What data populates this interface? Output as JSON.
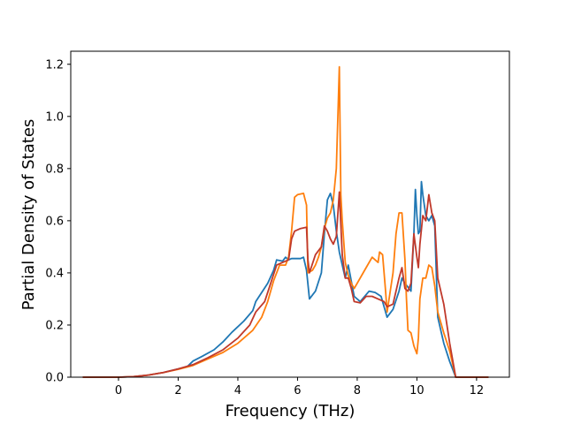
{
  "chart_data": {
    "type": "line",
    "title": "",
    "xlabel": "Frequency (THz)",
    "ylabel": "Partial Density of States",
    "xlim": [
      -1.6,
      13.1
    ],
    "ylim": [
      0.0,
      1.25
    ],
    "xticks": [
      0,
      2,
      4,
      6,
      8,
      10,
      12
    ],
    "yticks": [
      0.0,
      0.2,
      0.4,
      0.6,
      0.8,
      1.0,
      1.2
    ],
    "xtick_labels": [
      "0",
      "2",
      "4",
      "6",
      "8",
      "10",
      "12"
    ],
    "ytick_labels": [
      "0.0",
      "0.2",
      "0.4",
      "0.6",
      "0.8",
      "1.0",
      "1.2"
    ],
    "grid": false,
    "legend": "none",
    "series": [
      {
        "color": "#1f77b4",
        "points": [
          [
            -1.2,
            0.0
          ],
          [
            0.0,
            0.0
          ],
          [
            0.5,
            0.002
          ],
          [
            1.0,
            0.008
          ],
          [
            1.5,
            0.018
          ],
          [
            2.0,
            0.032
          ],
          [
            2.3,
            0.04
          ],
          [
            2.5,
            0.062
          ],
          [
            2.8,
            0.08
          ],
          [
            3.2,
            0.105
          ],
          [
            3.5,
            0.135
          ],
          [
            3.8,
            0.172
          ],
          [
            4.2,
            0.215
          ],
          [
            4.5,
            0.255
          ],
          [
            4.6,
            0.29
          ],
          [
            5.0,
            0.36
          ],
          [
            5.2,
            0.41
          ],
          [
            5.3,
            0.45
          ],
          [
            5.5,
            0.445
          ],
          [
            5.6,
            0.46
          ],
          [
            5.7,
            0.45
          ],
          [
            5.8,
            0.455
          ],
          [
            6.1,
            0.455
          ],
          [
            6.2,
            0.46
          ],
          [
            6.3,
            0.41
          ],
          [
            6.4,
            0.3
          ],
          [
            6.6,
            0.33
          ],
          [
            6.8,
            0.4
          ],
          [
            6.9,
            0.55
          ],
          [
            7.0,
            0.68
          ],
          [
            7.1,
            0.705
          ],
          [
            7.2,
            0.66
          ],
          [
            7.3,
            0.56
          ],
          [
            7.4,
            0.48
          ],
          [
            7.5,
            0.43
          ],
          [
            7.6,
            0.38
          ],
          [
            7.7,
            0.43
          ],
          [
            7.9,
            0.31
          ],
          [
            8.1,
            0.29
          ],
          [
            8.4,
            0.33
          ],
          [
            8.6,
            0.325
          ],
          [
            8.8,
            0.31
          ],
          [
            9.0,
            0.23
          ],
          [
            9.2,
            0.26
          ],
          [
            9.4,
            0.33
          ],
          [
            9.5,
            0.38
          ],
          [
            9.6,
            0.36
          ],
          [
            9.8,
            0.33
          ],
          [
            9.9,
            0.55
          ],
          [
            9.95,
            0.72
          ],
          [
            10.0,
            0.62
          ],
          [
            10.05,
            0.55
          ],
          [
            10.1,
            0.56
          ],
          [
            10.15,
            0.75
          ],
          [
            10.2,
            0.7
          ],
          [
            10.3,
            0.62
          ],
          [
            10.4,
            0.6
          ],
          [
            10.5,
            0.62
          ],
          [
            10.6,
            0.58
          ],
          [
            10.7,
            0.23
          ],
          [
            10.9,
            0.13
          ],
          [
            11.1,
            0.06
          ],
          [
            11.2,
            0.03
          ],
          [
            11.3,
            0.0
          ],
          [
            12.4,
            0.0
          ]
        ]
      },
      {
        "color": "#ff7f0e",
        "points": [
          [
            -1.2,
            0.0
          ],
          [
            0.0,
            0.0
          ],
          [
            0.5,
            0.002
          ],
          [
            1.0,
            0.008
          ],
          [
            1.5,
            0.018
          ],
          [
            2.0,
            0.03
          ],
          [
            2.5,
            0.045
          ],
          [
            3.0,
            0.07
          ],
          [
            3.5,
            0.095
          ],
          [
            4.0,
            0.13
          ],
          [
            4.5,
            0.18
          ],
          [
            4.8,
            0.23
          ],
          [
            5.0,
            0.29
          ],
          [
            5.2,
            0.37
          ],
          [
            5.4,
            0.43
          ],
          [
            5.6,
            0.43
          ],
          [
            5.7,
            0.46
          ],
          [
            5.8,
            0.56
          ],
          [
            5.9,
            0.69
          ],
          [
            6.0,
            0.7
          ],
          [
            6.2,
            0.705
          ],
          [
            6.3,
            0.66
          ],
          [
            6.35,
            0.4
          ],
          [
            6.5,
            0.41
          ],
          [
            6.6,
            0.43
          ],
          [
            6.7,
            0.46
          ],
          [
            6.8,
            0.5
          ],
          [
            6.9,
            0.57
          ],
          [
            7.0,
            0.61
          ],
          [
            7.1,
            0.63
          ],
          [
            7.2,
            0.68
          ],
          [
            7.3,
            0.8
          ],
          [
            7.4,
            1.19
          ],
          [
            7.45,
            0.7
          ],
          [
            7.5,
            0.6
          ],
          [
            7.6,
            0.44
          ],
          [
            7.7,
            0.39
          ],
          [
            7.8,
            0.36
          ],
          [
            7.9,
            0.34
          ],
          [
            8.0,
            0.36
          ],
          [
            8.3,
            0.42
          ],
          [
            8.5,
            0.46
          ],
          [
            8.7,
            0.44
          ],
          [
            8.75,
            0.48
          ],
          [
            8.85,
            0.47
          ],
          [
            8.95,
            0.33
          ],
          [
            9.0,
            0.25
          ],
          [
            9.2,
            0.4
          ],
          [
            9.3,
            0.55
          ],
          [
            9.4,
            0.63
          ],
          [
            9.5,
            0.63
          ],
          [
            9.6,
            0.45
          ],
          [
            9.65,
            0.3
          ],
          [
            9.7,
            0.18
          ],
          [
            9.8,
            0.17
          ],
          [
            9.9,
            0.12
          ],
          [
            10.0,
            0.09
          ],
          [
            10.05,
            0.15
          ],
          [
            10.1,
            0.3
          ],
          [
            10.2,
            0.38
          ],
          [
            10.3,
            0.38
          ],
          [
            10.4,
            0.43
          ],
          [
            10.5,
            0.42
          ],
          [
            10.6,
            0.35
          ],
          [
            10.7,
            0.25
          ],
          [
            10.9,
            0.17
          ],
          [
            11.1,
            0.1
          ],
          [
            11.3,
            0.0
          ],
          [
            12.4,
            0.0
          ]
        ]
      },
      {
        "color": "#c0392b",
        "points": [
          [
            -1.2,
            0.0
          ],
          [
            0.0,
            0.0
          ],
          [
            0.5,
            0.002
          ],
          [
            1.0,
            0.008
          ],
          [
            1.5,
            0.018
          ],
          [
            2.0,
            0.032
          ],
          [
            2.5,
            0.048
          ],
          [
            3.0,
            0.075
          ],
          [
            3.5,
            0.105
          ],
          [
            4.0,
            0.15
          ],
          [
            4.4,
            0.2
          ],
          [
            4.6,
            0.25
          ],
          [
            4.9,
            0.29
          ],
          [
            5.1,
            0.36
          ],
          [
            5.3,
            0.43
          ],
          [
            5.5,
            0.44
          ],
          [
            5.7,
            0.45
          ],
          [
            5.8,
            0.53
          ],
          [
            5.9,
            0.56
          ],
          [
            6.1,
            0.57
          ],
          [
            6.3,
            0.575
          ],
          [
            6.35,
            0.45
          ],
          [
            6.4,
            0.4
          ],
          [
            6.6,
            0.47
          ],
          [
            6.8,
            0.5
          ],
          [
            6.9,
            0.58
          ],
          [
            7.0,
            0.56
          ],
          [
            7.1,
            0.53
          ],
          [
            7.2,
            0.51
          ],
          [
            7.3,
            0.54
          ],
          [
            7.4,
            0.71
          ],
          [
            7.5,
            0.47
          ],
          [
            7.6,
            0.38
          ],
          [
            7.7,
            0.38
          ],
          [
            7.8,
            0.34
          ],
          [
            7.9,
            0.29
          ],
          [
            8.1,
            0.285
          ],
          [
            8.3,
            0.31
          ],
          [
            8.5,
            0.31
          ],
          [
            8.7,
            0.3
          ],
          [
            8.9,
            0.29
          ],
          [
            9.0,
            0.27
          ],
          [
            9.2,
            0.28
          ],
          [
            9.4,
            0.38
          ],
          [
            9.5,
            0.42
          ],
          [
            9.6,
            0.34
          ],
          [
            9.7,
            0.33
          ],
          [
            9.8,
            0.36
          ],
          [
            9.9,
            0.55
          ],
          [
            10.0,
            0.46
          ],
          [
            10.05,
            0.42
          ],
          [
            10.1,
            0.51
          ],
          [
            10.2,
            0.62
          ],
          [
            10.3,
            0.6
          ],
          [
            10.4,
            0.7
          ],
          [
            10.5,
            0.63
          ],
          [
            10.6,
            0.6
          ],
          [
            10.7,
            0.38
          ],
          [
            10.9,
            0.28
          ],
          [
            11.1,
            0.13
          ],
          [
            11.3,
            0.0
          ],
          [
            12.4,
            0.0
          ]
        ]
      }
    ]
  }
}
